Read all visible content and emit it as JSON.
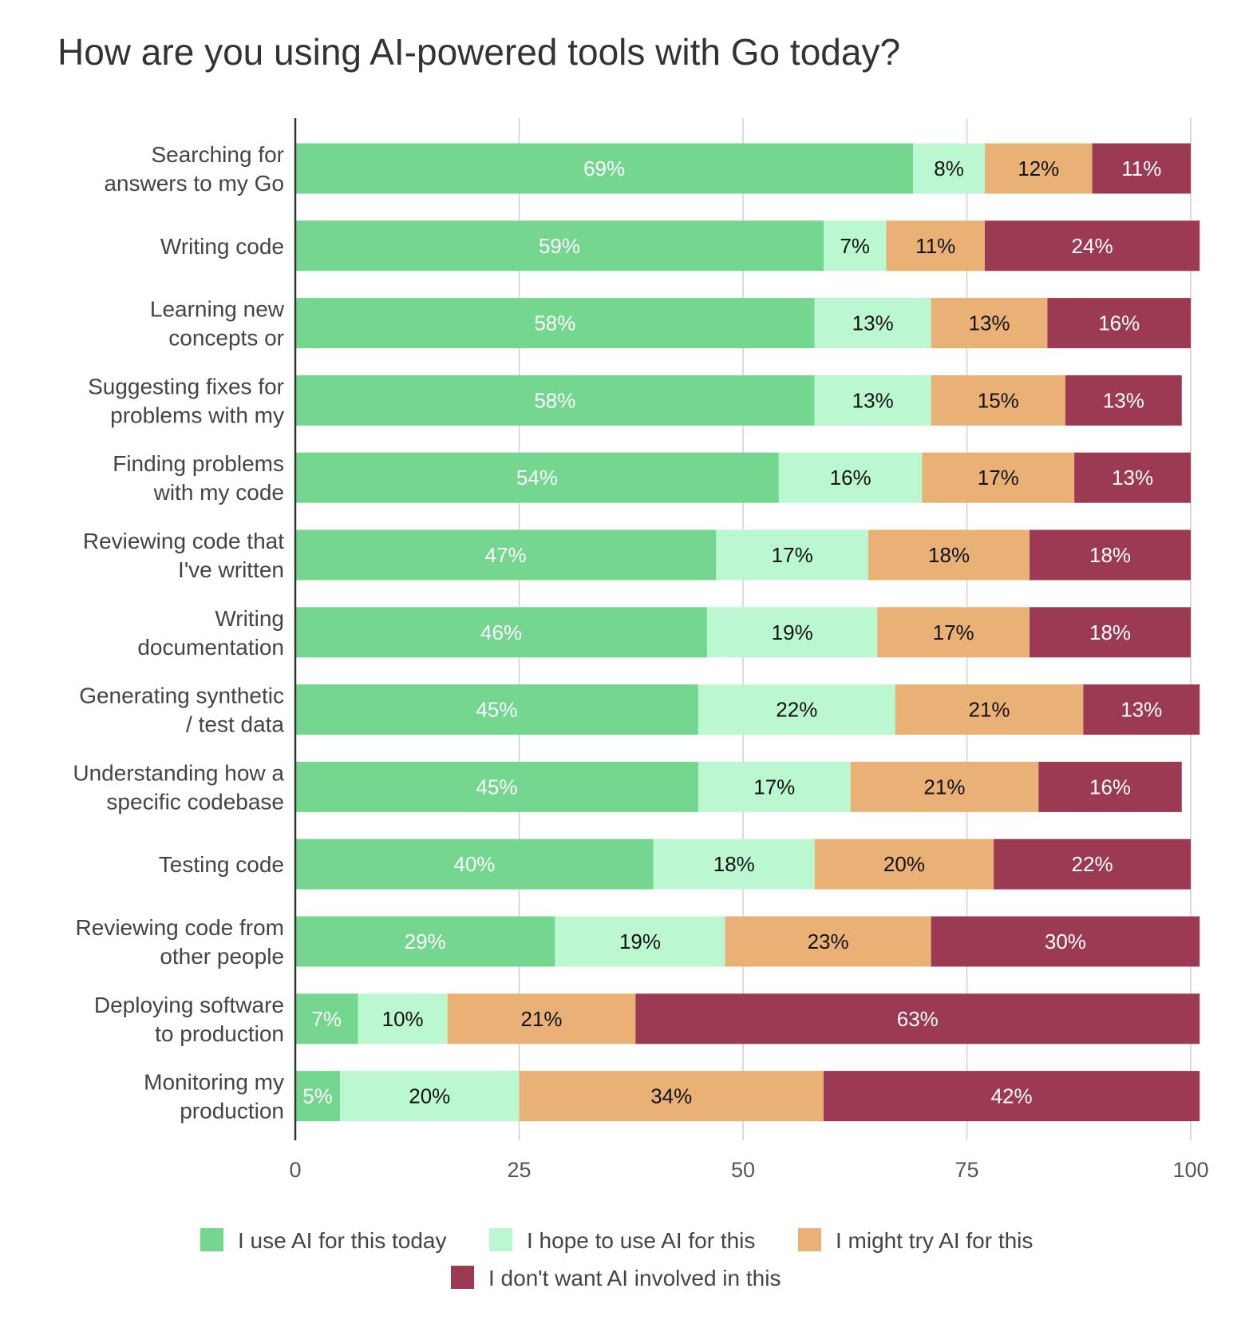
{
  "chart_data": {
    "type": "bar",
    "orientation": "horizontal",
    "stacked": true,
    "title": "How are you using AI-powered tools with Go today?",
    "xlabel": "",
    "ylabel": "",
    "xlim": [
      0,
      100
    ],
    "x_ticks": [
      0,
      25,
      50,
      75,
      100
    ],
    "grid": true,
    "legend_position": "bottom",
    "categories": [
      [
        "Searching for",
        "answers to my Go"
      ],
      [
        "Writing code"
      ],
      [
        "Learning new",
        "concepts or"
      ],
      [
        "Suggesting fixes for",
        "problems with my"
      ],
      [
        "Finding problems",
        "with my code"
      ],
      [
        "Reviewing code that",
        "I've written"
      ],
      [
        "Writing",
        "documentation"
      ],
      [
        "Generating synthetic",
        "/ test data"
      ],
      [
        "Understanding how a",
        "specific codebase"
      ],
      [
        "Testing code"
      ],
      [
        "Reviewing code from",
        "other people"
      ],
      [
        "Deploying software",
        "to production"
      ],
      [
        "Monitoring my",
        "production"
      ]
    ],
    "series": [
      {
        "name": "I use AI for this today",
        "color": "#74d68f",
        "label_color": "#ffffff",
        "values": [
          69,
          59,
          58,
          58,
          54,
          47,
          46,
          45,
          45,
          40,
          29,
          7,
          5
        ]
      },
      {
        "name": "I hope to use AI for this",
        "color": "#bbf8d2",
        "label_color": "#111111",
        "values": [
          8,
          7,
          13,
          13,
          16,
          17,
          19,
          22,
          17,
          18,
          19,
          10,
          20
        ]
      },
      {
        "name": "I might try AI for this",
        "color": "#e9b175",
        "label_color": "#111111",
        "values": [
          12,
          11,
          13,
          15,
          17,
          18,
          17,
          21,
          21,
          20,
          23,
          21,
          34
        ]
      },
      {
        "name": "I don't want AI involved in this",
        "color": "#9b3a52",
        "label_color": "#ffffff",
        "values": [
          11,
          24,
          16,
          13,
          13,
          18,
          18,
          13,
          16,
          22,
          30,
          63,
          42
        ]
      }
    ]
  }
}
